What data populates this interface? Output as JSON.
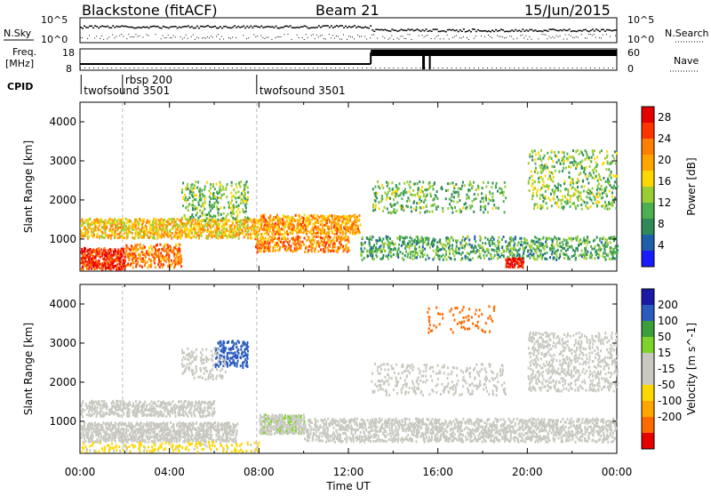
{
  "header": {
    "station": "Blackstone (fitACF)",
    "beam": "Beam 21",
    "date": "15/Jun/2015"
  },
  "noise_panel": {
    "left_label": "N.Sky",
    "right_label": "N.Search",
    "tick_top": "10^5",
    "tick_bottom": "10^0"
  },
  "freq_panel": {
    "left_label_1": "Freq.",
    "left_label_2": "[MHz]",
    "right_label": "Nave",
    "freq_ticks": [
      "18",
      "8"
    ],
    "nave_ticks": [
      "60",
      "0"
    ]
  },
  "cpid": {
    "label": "CPID",
    "programs": [
      {
        "name": "twofsound 3501",
        "start_hour": 0.05
      },
      {
        "name": "rbsp 200",
        "start_hour": 1.9
      },
      {
        "name": "twofsound 3501",
        "start_hour": 7.9
      }
    ]
  },
  "colors": {
    "power": [
      "#1a1aff",
      "#1d5fa8",
      "#2e8b57",
      "#4caf50",
      "#9acd32",
      "#ffd700",
      "#ffa500",
      "#ff7f00",
      "#ff3300",
      "#e60000"
    ],
    "velocity": [
      "#e60000",
      "#ff6a00",
      "#ffa500",
      "#ffd700",
      "#c8c8c0",
      "#c8c8c0",
      "#7cd42a",
      "#3a9e3a",
      "#2a5bbf",
      "#1a1aa6"
    ]
  },
  "chart_data": [
    {
      "type": "heatmap",
      "title": "",
      "xlabel": "Time UT",
      "ylabel": "Slant Range [km]",
      "xlim": [
        0,
        24
      ],
      "ylim": [
        180,
        4500
      ],
      "x_ticks": [
        "00:00",
        "04:00",
        "08:00",
        "12:00",
        "16:00",
        "20:00",
        "00:00"
      ],
      "y_ticks": [
        "1000",
        "2000",
        "3000",
        "4000"
      ],
      "colorbar": {
        "label": "Power [dB]",
        "ticks": [
          "4",
          "8",
          "12",
          "16",
          "20",
          "24",
          "28"
        ],
        "range": [
          0,
          30
        ]
      },
      "scatter_regions": [
        {
          "t0": 0.0,
          "t1": 2.0,
          "r0": 250,
          "r1": 800,
          "value": 27,
          "density": 0.85
        },
        {
          "t0": 2.0,
          "t1": 4.5,
          "r0": 300,
          "r1": 900,
          "value": 22,
          "density": 0.6
        },
        {
          "t0": 0.0,
          "t1": 8.0,
          "r0": 1050,
          "r1": 1550,
          "value": 18,
          "density": 0.7
        },
        {
          "t0": 4.5,
          "t1": 7.5,
          "r0": 1500,
          "r1": 2500,
          "value": 12,
          "density": 0.3
        },
        {
          "t0": 8.0,
          "t1": 12.5,
          "r0": 1150,
          "r1": 1650,
          "value": 20,
          "density": 0.7
        },
        {
          "t0": 7.8,
          "t1": 12.0,
          "r0": 700,
          "r1": 1100,
          "value": 22,
          "density": 0.55
        },
        {
          "t0": 12.5,
          "t1": 24.0,
          "r0": 500,
          "r1": 1100,
          "value": 10,
          "density": 0.4
        },
        {
          "t0": 19.0,
          "t1": 19.8,
          "r0": 300,
          "r1": 550,
          "value": 28,
          "density": 0.8
        },
        {
          "t0": 13.0,
          "t1": 19.0,
          "r0": 1700,
          "r1": 2500,
          "value": 11,
          "density": 0.2
        },
        {
          "t0": 20.0,
          "t1": 24.0,
          "r0": 1800,
          "r1": 3300,
          "value": 12,
          "density": 0.25
        }
      ]
    },
    {
      "type": "heatmap",
      "title": "",
      "xlabel": "Time UT",
      "ylabel": "Slant Range [km]",
      "xlim": [
        0,
        24
      ],
      "ylim": [
        180,
        4500
      ],
      "x_ticks": [
        "00:00",
        "04:00",
        "08:00",
        "12:00",
        "16:00",
        "20:00",
        "00:00"
      ],
      "y_ticks": [
        "1000",
        "2000",
        "3000",
        "4000"
      ],
      "colorbar": {
        "label": "Velocity [m s^-1]",
        "ticks": [
          "200",
          "100",
          "50",
          "15",
          "-15",
          "-50",
          "-100",
          "-200"
        ],
        "range": [
          -250,
          250
        ]
      },
      "scatter_regions": [
        {
          "t0": 0.0,
          "t1": 7.0,
          "r0": 500,
          "r1": 1000,
          "value": 0,
          "density": 0.75
        },
        {
          "t0": 0.0,
          "t1": 6.0,
          "r0": 1150,
          "r1": 1550,
          "value": 0,
          "density": 0.55
        },
        {
          "t0": 8.0,
          "t1": 10.0,
          "r0": 700,
          "r1": 1200,
          "value": 40,
          "density": 0.85
        },
        {
          "t0": 6.0,
          "t1": 7.5,
          "r0": 2400,
          "r1": 3100,
          "value": 180,
          "density": 0.4
        },
        {
          "t0": 4.5,
          "t1": 6.5,
          "r0": 2100,
          "r1": 2900,
          "value": 30,
          "density": 0.25
        },
        {
          "t0": 10.0,
          "t1": 24.0,
          "r0": 500,
          "r1": 1100,
          "value": 0,
          "density": 0.55
        },
        {
          "t0": 13.0,
          "t1": 19.0,
          "r0": 1700,
          "r1": 2500,
          "value": 0,
          "density": 0.2
        },
        {
          "t0": 20.0,
          "t1": 24.0,
          "r0": 1800,
          "r1": 3300,
          "value": 0,
          "density": 0.3
        },
        {
          "t0": 0.0,
          "t1": 8.0,
          "r0": 250,
          "r1": 500,
          "value": -60,
          "density": 0.25
        },
        {
          "t0": 15.5,
          "t1": 18.5,
          "r0": 3300,
          "r1": 4000,
          "value": -180,
          "density": 0.12
        }
      ]
    }
  ]
}
